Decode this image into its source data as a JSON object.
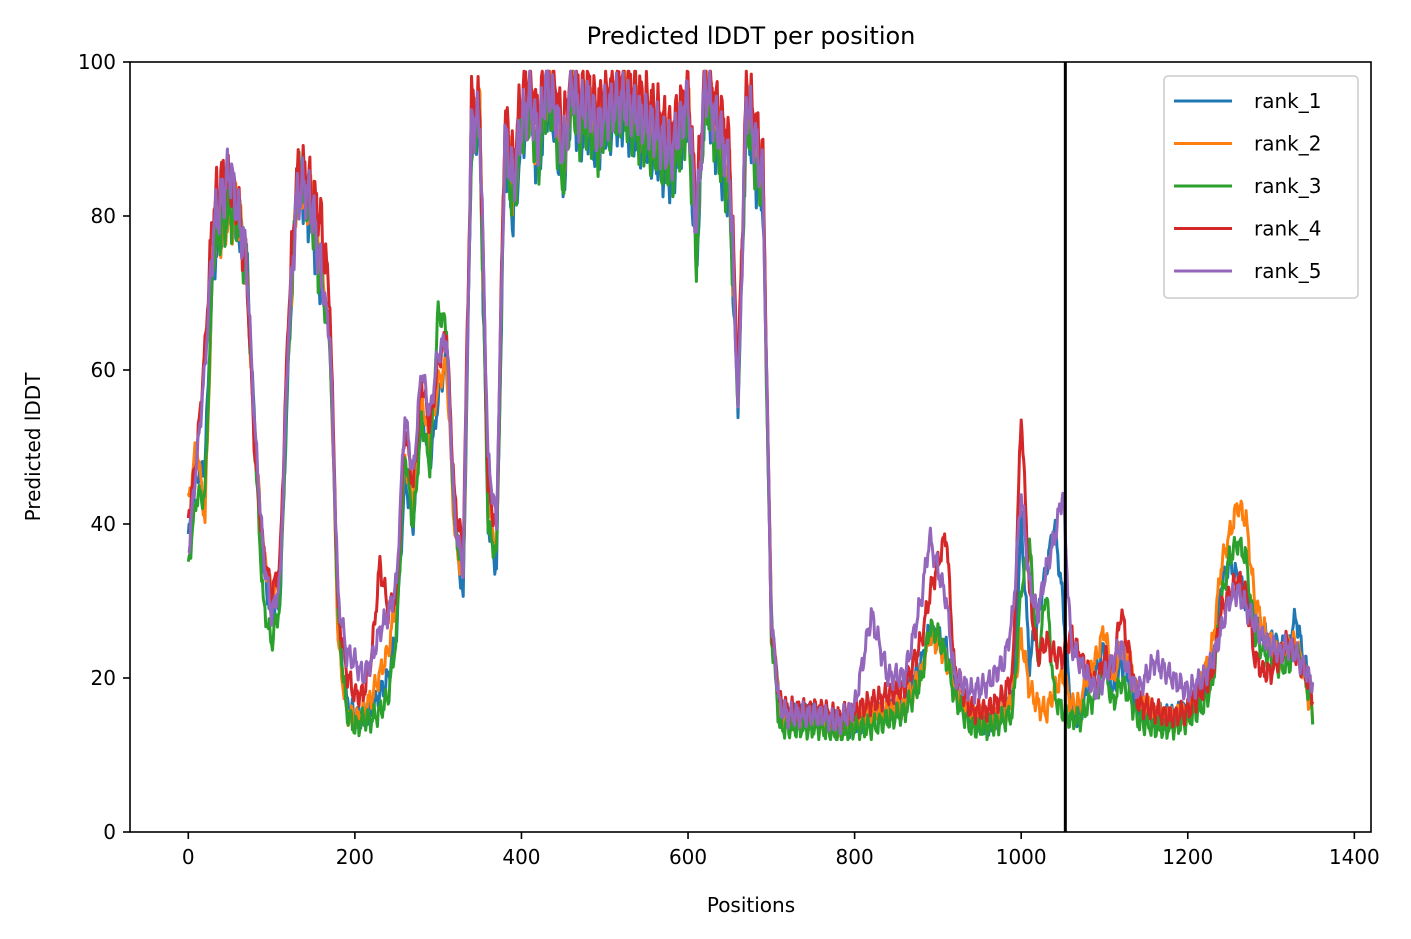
{
  "chart_data": {
    "type": "line",
    "title": "Predicted lDDT per position",
    "xlabel": "Positions",
    "ylabel": "Predicted lDDT",
    "xlim": [
      -70,
      1420
    ],
    "ylim": [
      0,
      100
    ],
    "xticks": [
      0,
      200,
      400,
      600,
      800,
      1000,
      1200,
      1400
    ],
    "yticks": [
      0,
      20,
      40,
      60,
      80,
      100
    ],
    "grid": false,
    "legend_position": "top-right",
    "vline_x": 1053,
    "vline_color": "#000000",
    "series": [
      {
        "name": "rank_1",
        "color": "#1f77b4",
        "offset": 0.0,
        "phase": 0.3,
        "x": [
          0,
          10,
          20,
          30,
          40,
          50,
          60,
          70,
          80,
          90,
          100,
          110,
          120,
          130,
          140,
          150,
          160,
          170,
          180,
          190,
          200,
          210,
          220,
          230,
          240,
          250,
          260,
          270,
          280,
          290,
          300,
          310,
          320,
          330,
          340,
          350,
          360,
          370,
          380,
          390,
          400,
          410,
          420,
          430,
          440,
          450,
          460,
          470,
          480,
          490,
          500,
          520,
          540,
          560,
          580,
          600,
          610,
          620,
          640,
          650,
          660,
          670,
          680,
          690,
          700,
          710,
          720,
          740,
          760,
          780,
          800,
          820,
          840,
          860,
          880,
          890,
          900,
          910,
          920,
          940,
          960,
          980,
          990,
          1000,
          1010,
          1020,
          1030,
          1040,
          1050,
          1060,
          1070,
          1080,
          1090,
          1100,
          1110,
          1120,
          1130,
          1140,
          1160,
          1180,
          1200,
          1220,
          1230,
          1240,
          1250,
          1260,
          1270,
          1280,
          1290,
          1300,
          1310,
          1320,
          1330,
          1340,
          1350
        ],
        "y": [
          38,
          46,
          48,
          74,
          80,
          82,
          79,
          74,
          52,
          34,
          28,
          30,
          60,
          84,
          82,
          78,
          70,
          66,
          26,
          17,
          15,
          15,
          16,
          18,
          20,
          26,
          46,
          40,
          55,
          48,
          56,
          62,
          40,
          30,
          90,
          92,
          40,
          34,
          88,
          80,
          90,
          94,
          86,
          95,
          92,
          84,
          96,
          90,
          92,
          88,
          91,
          93,
          90,
          88,
          85,
          93,
          74,
          96,
          86,
          82,
          55,
          94,
          86,
          82,
          28,
          16,
          15,
          15,
          15,
          14,
          14,
          15,
          16,
          17,
          22,
          26,
          25,
          24,
          19,
          15,
          14,
          16,
          18,
          40,
          22,
          28,
          34,
          40,
          30,
          15,
          15,
          19,
          21,
          24,
          18,
          22,
          20,
          16,
          15,
          15,
          16,
          19,
          22,
          32,
          35,
          33,
          30,
          28,
          26,
          25,
          24,
          24,
          28,
          22,
          18
        ]
      },
      {
        "name": "rank_2",
        "color": "#ff7f0e",
        "offset": 0.5,
        "phase": 1.1,
        "x": [
          0,
          10,
          20,
          30,
          40,
          50,
          60,
          70,
          80,
          90,
          100,
          110,
          120,
          130,
          140,
          150,
          160,
          170,
          180,
          190,
          200,
          210,
          220,
          230,
          240,
          250,
          260,
          270,
          280,
          290,
          300,
          310,
          320,
          330,
          340,
          350,
          360,
          370,
          380,
          390,
          400,
          410,
          420,
          430,
          440,
          450,
          460,
          470,
          480,
          490,
          500,
          520,
          540,
          560,
          580,
          600,
          610,
          620,
          640,
          650,
          660,
          670,
          680,
          690,
          700,
          710,
          720,
          740,
          760,
          780,
          800,
          820,
          840,
          860,
          880,
          890,
          900,
          910,
          920,
          940,
          960,
          980,
          990,
          1000,
          1010,
          1020,
          1030,
          1040,
          1050,
          1060,
          1070,
          1080,
          1090,
          1100,
          1110,
          1120,
          1130,
          1140,
          1160,
          1180,
          1200,
          1220,
          1230,
          1240,
          1250,
          1260,
          1270,
          1280,
          1290,
          1300,
          1310,
          1320,
          1330,
          1340,
          1350
        ],
        "y": [
          42,
          50,
          40,
          76,
          78,
          80,
          80,
          72,
          50,
          36,
          30,
          32,
          62,
          83,
          83,
          80,
          72,
          64,
          24,
          15,
          14,
          15,
          17,
          20,
          23,
          30,
          48,
          42,
          56,
          50,
          58,
          60,
          38,
          32,
          92,
          93,
          42,
          36,
          90,
          82,
          92,
          93,
          88,
          96,
          93,
          86,
          96,
          92,
          94,
          90,
          93,
          95,
          92,
          90,
          88,
          94,
          76,
          97,
          88,
          84,
          56,
          95,
          88,
          84,
          27,
          15,
          14,
          14,
          14,
          13,
          14,
          15,
          15,
          16,
          20,
          25,
          24,
          22,
          18,
          15,
          14,
          15,
          17,
          25,
          18,
          16,
          15,
          18,
          20,
          16,
          16,
          20,
          22,
          26,
          19,
          24,
          22,
          17,
          15,
          14,
          15,
          20,
          24,
          34,
          38,
          42,
          40,
          30,
          26,
          24,
          22,
          24,
          24,
          20,
          14
        ]
      },
      {
        "name": "rank_3",
        "color": "#2ca02c",
        "offset": -0.4,
        "phase": 2.0,
        "x": [
          0,
          10,
          20,
          30,
          40,
          50,
          60,
          70,
          80,
          90,
          100,
          110,
          120,
          130,
          140,
          150,
          160,
          170,
          180,
          190,
          200,
          210,
          220,
          230,
          240,
          250,
          260,
          270,
          280,
          290,
          300,
          310,
          320,
          330,
          340,
          350,
          360,
          370,
          380,
          390,
          400,
          410,
          420,
          430,
          440,
          450,
          460,
          470,
          480,
          490,
          500,
          520,
          540,
          560,
          580,
          600,
          610,
          620,
          640,
          650,
          660,
          670,
          680,
          690,
          700,
          710,
          720,
          740,
          760,
          780,
          800,
          820,
          840,
          860,
          880,
          890,
          900,
          910,
          920,
          940,
          960,
          980,
          990,
          1000,
          1010,
          1020,
          1030,
          1040,
          1050,
          1060,
          1070,
          1080,
          1090,
          1100,
          1110,
          1120,
          1130,
          1140,
          1160,
          1180,
          1200,
          1220,
          1230,
          1240,
          1250,
          1260,
          1270,
          1280,
          1290,
          1300,
          1310,
          1320,
          1330,
          1340,
          1350
        ],
        "y": [
          35,
          44,
          44,
          76,
          79,
          81,
          80,
          73,
          50,
          30,
          25,
          30,
          62,
          86,
          84,
          79,
          71,
          64,
          28,
          16,
          14,
          15,
          15,
          16,
          18,
          26,
          50,
          40,
          54,
          48,
          68,
          66,
          40,
          34,
          92,
          92,
          40,
          36,
          89,
          82,
          91,
          94,
          87,
          96,
          93,
          85,
          96,
          91,
          93,
          89,
          92,
          94,
          91,
          89,
          86,
          93,
          75,
          96,
          87,
          83,
          56,
          94,
          87,
          83,
          26,
          14,
          14,
          14,
          14,
          13,
          14,
          14,
          15,
          16,
          20,
          27,
          26,
          23,
          18,
          14,
          14,
          15,
          16,
          32,
          38,
          22,
          32,
          18,
          16,
          15,
          15,
          17,
          18,
          22,
          17,
          20,
          18,
          15,
          14,
          14,
          15,
          17,
          20,
          30,
          36,
          38,
          36,
          26,
          24,
          23,
          22,
          22,
          24,
          21,
          16
        ]
      },
      {
        "name": "rank_4",
        "color": "#d62728",
        "offset": 0.8,
        "phase": 2.7,
        "x": [
          0,
          10,
          20,
          30,
          40,
          50,
          60,
          70,
          80,
          90,
          100,
          110,
          120,
          130,
          140,
          150,
          160,
          170,
          180,
          190,
          200,
          210,
          220,
          230,
          240,
          250,
          260,
          270,
          280,
          290,
          300,
          310,
          320,
          330,
          340,
          350,
          360,
          370,
          380,
          390,
          400,
          410,
          420,
          430,
          440,
          450,
          460,
          470,
          480,
          490,
          500,
          520,
          540,
          560,
          580,
          600,
          610,
          620,
          640,
          650,
          660,
          670,
          680,
          690,
          700,
          710,
          720,
          740,
          760,
          780,
          800,
          820,
          840,
          860,
          880,
          890,
          900,
          910,
          920,
          940,
          960,
          980,
          990,
          1000,
          1010,
          1020,
          1030,
          1040,
          1050,
          1060,
          1070,
          1080,
          1090,
          1100,
          1110,
          1120,
          1130,
          1140,
          1160,
          1180,
          1200,
          1220,
          1230,
          1240,
          1250,
          1260,
          1270,
          1280,
          1290,
          1300,
          1310,
          1320,
          1330,
          1340,
          1350
        ],
        "y": [
          40,
          48,
          62,
          80,
          84,
          84,
          80,
          72,
          48,
          36,
          30,
          34,
          66,
          84,
          85,
          82,
          78,
          68,
          28,
          20,
          17,
          17,
          22,
          34,
          28,
          30,
          52,
          44,
          58,
          52,
          60,
          64,
          42,
          36,
          94,
          93,
          44,
          38,
          92,
          86,
          95,
          97,
          92,
          98,
          96,
          90,
          98,
          95,
          96,
          93,
          95,
          97,
          95,
          93,
          90,
          96,
          80,
          98,
          92,
          88,
          58,
          96,
          92,
          86,
          26,
          16,
          15,
          15,
          15,
          14,
          15,
          16,
          17,
          18,
          24,
          30,
          34,
          38,
          20,
          15,
          15,
          17,
          20,
          54,
          30,
          22,
          24,
          22,
          22,
          25,
          22,
          20,
          18,
          22,
          20,
          28,
          22,
          16,
          15,
          14,
          15,
          18,
          20,
          28,
          30,
          32,
          30,
          22,
          20,
          20,
          22,
          24,
          22,
          20,
          17
        ]
      },
      {
        "name": "rank_5",
        "color": "#9467bd",
        "offset": 0.2,
        "phase": 3.6,
        "x": [
          0,
          10,
          20,
          30,
          40,
          50,
          60,
          70,
          80,
          90,
          100,
          110,
          120,
          130,
          140,
          150,
          160,
          170,
          180,
          190,
          200,
          210,
          220,
          230,
          240,
          250,
          260,
          270,
          280,
          290,
          300,
          310,
          320,
          330,
          340,
          350,
          360,
          370,
          380,
          390,
          400,
          410,
          420,
          430,
          440,
          450,
          460,
          470,
          480,
          490,
          500,
          520,
          540,
          560,
          580,
          600,
          610,
          620,
          640,
          650,
          660,
          670,
          680,
          690,
          700,
          710,
          720,
          740,
          760,
          780,
          800,
          820,
          840,
          860,
          880,
          890,
          900,
          910,
          920,
          940,
          960,
          980,
          990,
          1000,
          1010,
          1020,
          1030,
          1040,
          1050,
          1060,
          1070,
          1080,
          1090,
          1100,
          1110,
          1120,
          1130,
          1140,
          1160,
          1180,
          1200,
          1220,
          1230,
          1240,
          1250,
          1260,
          1270,
          1280,
          1290,
          1300,
          1310,
          1320,
          1330,
          1340,
          1350
        ],
        "y": [
          36,
          48,
          60,
          78,
          82,
          86,
          80,
          74,
          52,
          36,
          28,
          32,
          64,
          82,
          84,
          80,
          72,
          64,
          30,
          23,
          22,
          20,
          22,
          26,
          28,
          32,
          54,
          46,
          60,
          54,
          62,
          64,
          40,
          34,
          92,
          92,
          48,
          40,
          90,
          84,
          92,
          95,
          90,
          97,
          94,
          88,
          97,
          93,
          95,
          91,
          93,
          95,
          93,
          91,
          88,
          95,
          78,
          97,
          90,
          86,
          55,
          95,
          90,
          84,
          27,
          16,
          15,
          15,
          15,
          14,
          16,
          28,
          20,
          20,
          30,
          38,
          34,
          30,
          20,
          18,
          19,
          22,
          28,
          44,
          32,
          28,
          34,
          38,
          44,
          24,
          22,
          20,
          18,
          20,
          22,
          24,
          20,
          18,
          22,
          20,
          18,
          20,
          22,
          26,
          30,
          31,
          29,
          27,
          25,
          24,
          23,
          24,
          23,
          21,
          19
        ]
      }
    ]
  }
}
